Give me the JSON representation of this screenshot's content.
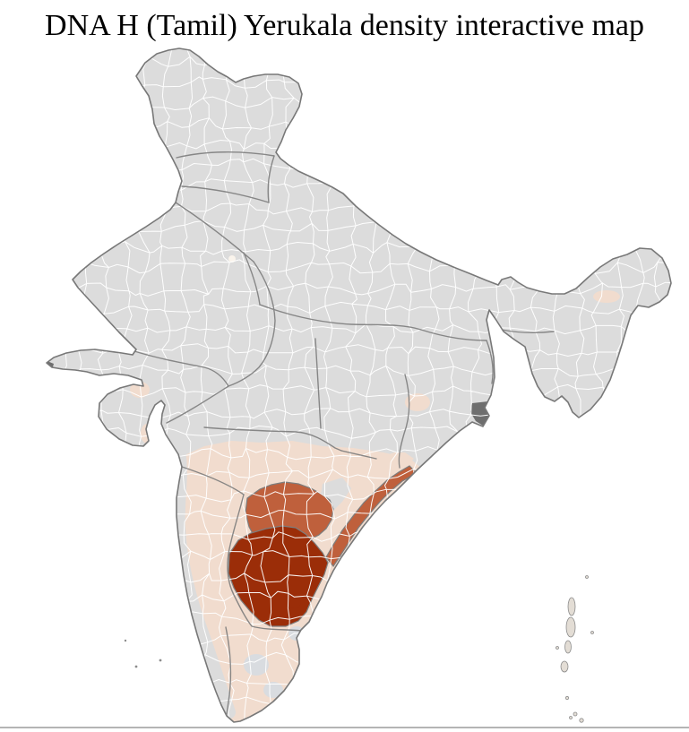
{
  "title": "DNA H (Tamil) Yerukala density interactive map",
  "map": {
    "type": "choropleth-district-map-of-india",
    "colors": {
      "background": "#ffffff",
      "land": "#dcdcdc",
      "district_line": "#ffffff",
      "state_line": "#7d7d7d",
      "coastline": "#787878",
      "high": "#9b2d08",
      "medium": "#bf603c",
      "low": "#f1dcce",
      "no_data_patch": "#d9dce0",
      "delta": "#6e6e6e",
      "island": "#e3ddd5",
      "island_stroke": "#8c8c8c",
      "delhi_district": "#faf4ec",
      "divider": "#b4b4b4"
    },
    "density_levels": [
      {
        "level": "high",
        "color": "#9b2d08",
        "areas": "Rayalaseema and south coastal Andhra Pradesh districts"
      },
      {
        "level": "medium",
        "color": "#bf603c",
        "areas": "Telangana and northeast coastal Andhra Pradesh districts"
      },
      {
        "level": "low",
        "color": "#f1dcce",
        "areas": "South Maharashtra band, Karnataka interior, Tamil Nadu, coastal Odisha and scattered districts (Gujarat, Assam, Jharkhand-Bengal border)"
      },
      {
        "level": "none",
        "color": "#dcdcdc",
        "areas": "Remaining districts of India"
      }
    ]
  }
}
